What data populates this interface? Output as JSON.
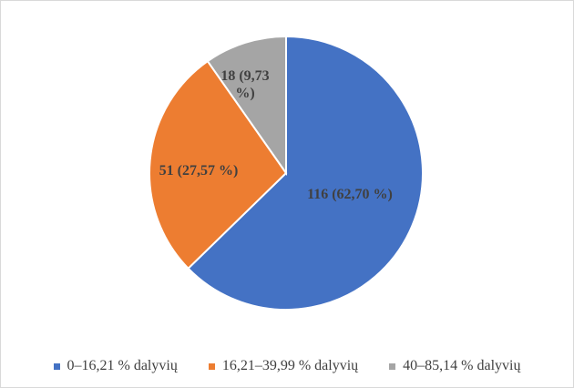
{
  "chart_data": {
    "type": "pie",
    "categories": [
      "0–16,21 % dalyvių",
      "16,21–39,99 % dalyvių",
      "40–85,14 % dalyvių"
    ],
    "values": [
      116,
      51,
      18
    ],
    "value_labels": [
      "116 (62,70 %)",
      "51 (27,57 %)",
      "18 (9,73 %)"
    ],
    "colors": [
      "#4472c4",
      "#ed7d31",
      "#a5a5a5"
    ]
  }
}
